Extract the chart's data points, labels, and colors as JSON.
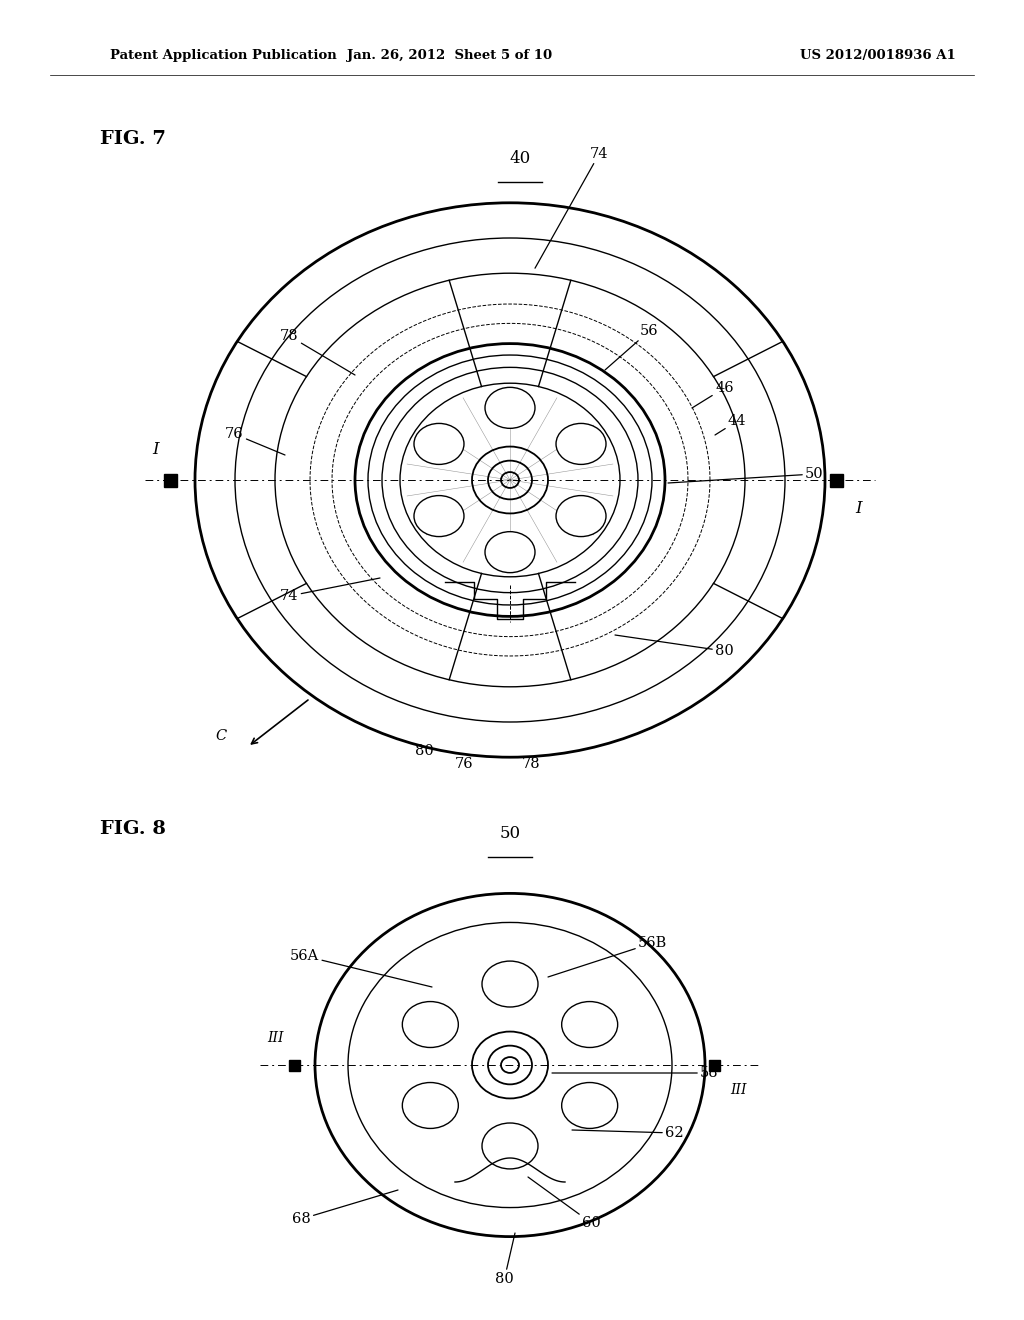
{
  "bg_color": "#ffffff",
  "header_text": "Patent Application Publication",
  "header_date": "Jan. 26, 2012  Sheet 5 of 10",
  "header_patent": "US 2012/0018936 A1",
  "fig7_label": "FIG. 7",
  "fig7_ref": "40",
  "fig8_label": "FIG. 8",
  "fig8_ref": "50",
  "line_color": "#000000",
  "page_width": 10.24,
  "page_height": 13.2
}
